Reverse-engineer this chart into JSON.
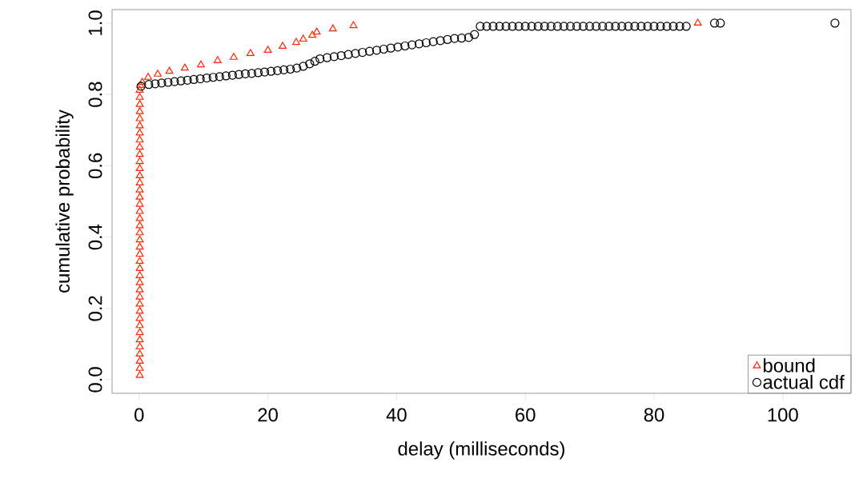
{
  "chart_data": {
    "type": "scatter",
    "xlabel": "delay (milliseconds)",
    "ylabel": "cumulative probability",
    "xlim": [
      -4.2,
      110.6
    ],
    "ylim": [
      -0.038,
      1.038
    ],
    "xticks": [
      0,
      20,
      40,
      60,
      80,
      100
    ],
    "yticks": [
      {
        "value": 0,
        "label": "0.0"
      },
      {
        "value": 0.2,
        "label": "0.2"
      },
      {
        "value": 0.4,
        "label": "0.4"
      },
      {
        "value": 0.6,
        "label": "0.6"
      },
      {
        "value": 0.8,
        "label": "0.8"
      },
      {
        "value": 1,
        "label": "1.0"
      }
    ],
    "grid": false,
    "legend": "bottom right",
    "series": [
      {
        "name": "bound",
        "color": "#ff2600",
        "marker": "triangle",
        "x": [
          0.1,
          0.1,
          0.1,
          0.1,
          0.1,
          0.1,
          0.1,
          0.1,
          0.1,
          0.1,
          0.1,
          0.1,
          0.1,
          0.1,
          0.1,
          0.1,
          0.1,
          0.1,
          0.1,
          0.1,
          0.1,
          0.1,
          0.1,
          0.1,
          0.1,
          0.1,
          0.1,
          0.1,
          0.1,
          0.1,
          0.1,
          0.1,
          0.1,
          0.1,
          0.1,
          0.1,
          0.1,
          0.1,
          0.1,
          0.1,
          0.1,
          0.2,
          0.5,
          1.4,
          2.9,
          4.7,
          7.1,
          9.6,
          12.2,
          14.7,
          17.3,
          20.0,
          22.3,
          24.4,
          25.5,
          26.9,
          27.6,
          30.1,
          33.3,
          86.8
        ],
        "values": [
          0.012,
          0.032,
          0.052,
          0.072,
          0.092,
          0.112,
          0.132,
          0.152,
          0.172,
          0.192,
          0.212,
          0.232,
          0.252,
          0.272,
          0.292,
          0.312,
          0.332,
          0.352,
          0.372,
          0.392,
          0.412,
          0.432,
          0.452,
          0.472,
          0.492,
          0.512,
          0.532,
          0.552,
          0.572,
          0.592,
          0.612,
          0.632,
          0.652,
          0.672,
          0.692,
          0.712,
          0.732,
          0.752,
          0.772,
          0.792,
          0.812,
          0.825,
          0.834,
          0.848,
          0.857,
          0.865,
          0.874,
          0.883,
          0.895,
          0.904,
          0.915,
          0.924,
          0.935,
          0.946,
          0.955,
          0.966,
          0.975,
          0.984,
          0.993,
          1.0
        ]
      },
      {
        "name": "actual cdf",
        "color": "#000000",
        "marker": "circle",
        "x": [
          0.3,
          1.5,
          2.5,
          3.5,
          4.5,
          5.5,
          6.5,
          7.5,
          8.5,
          9.5,
          10.5,
          11.5,
          12.5,
          13.5,
          14.5,
          15.5,
          16.5,
          17.5,
          18.5,
          19.5,
          20.5,
          21.5,
          22.5,
          23.5,
          24.5,
          25.5,
          26.5,
          27.3,
          28.1,
          29.2,
          30.3,
          31.4,
          32.5,
          33.6,
          34.7,
          35.8,
          36.9,
          38.0,
          39.1,
          40.2,
          41.3,
          42.4,
          43.5,
          44.6,
          45.7,
          46.8,
          47.9,
          49.0,
          50.1,
          51.2,
          52.1,
          53,
          54,
          55,
          56,
          57,
          58,
          59,
          60,
          61,
          62,
          63,
          64,
          65,
          66,
          67,
          68,
          69,
          70,
          71,
          72,
          73,
          74,
          75,
          76,
          77,
          78,
          79,
          80,
          81,
          82,
          83,
          84,
          85,
          89.4,
          90.3,
          108.1
        ],
        "values": [
          0.823,
          0.828,
          0.83,
          0.832,
          0.834,
          0.836,
          0.838,
          0.84,
          0.842,
          0.844,
          0.846,
          0.848,
          0.85,
          0.852,
          0.854,
          0.856,
          0.858,
          0.859,
          0.861,
          0.863,
          0.865,
          0.867,
          0.869,
          0.871,
          0.874,
          0.879,
          0.886,
          0.893,
          0.9,
          0.903,
          0.906,
          0.909,
          0.912,
          0.915,
          0.918,
          0.921,
          0.924,
          0.927,
          0.93,
          0.933,
          0.936,
          0.939,
          0.942,
          0.945,
          0.948,
          0.951,
          0.954,
          0.957,
          0.958,
          0.96,
          0.968,
          0.991,
          0.991,
          0.991,
          0.991,
          0.991,
          0.991,
          0.991,
          0.991,
          0.991,
          0.991,
          0.991,
          0.991,
          0.991,
          0.991,
          0.991,
          0.991,
          0.991,
          0.991,
          0.991,
          0.991,
          0.991,
          0.991,
          0.991,
          0.991,
          0.991,
          0.991,
          0.991,
          0.991,
          0.991,
          0.991,
          0.991,
          0.991,
          0.991,
          1.0,
          1.0,
          1.0
        ]
      }
    ]
  }
}
